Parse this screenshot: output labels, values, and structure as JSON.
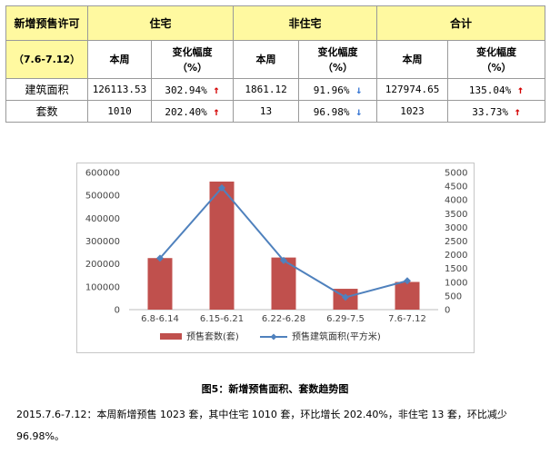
{
  "table": {
    "corner_title": "新增预售许可",
    "period": "（7.6-7.12）",
    "groups": [
      "住宅",
      "非住宅",
      "合计"
    ],
    "col_week": "本周",
    "col_change_line1": "变化幅度",
    "col_change_line2": "（%）",
    "rows": [
      {
        "label": "建筑面积",
        "residential": {
          "value": "126113.53",
          "change": "302.94%",
          "dir": "up"
        },
        "nonresidential": {
          "value": "1861.12",
          "change": "91.96%",
          "dir": "down"
        },
        "total": {
          "value": "127974.65",
          "change": "135.04%",
          "dir": "up"
        }
      },
      {
        "label": "套数",
        "residential": {
          "value": "1010",
          "change": "202.40%",
          "dir": "up"
        },
        "nonresidential": {
          "value": "13",
          "change": "96.98%",
          "dir": "down"
        },
        "total": {
          "value": "1023",
          "change": "33.73%",
          "dir": "up"
        }
      }
    ],
    "arrow_up": "↑",
    "arrow_down": "↓"
  },
  "chart_data": {
    "type": "bar",
    "categories": [
      "6.8-6.14",
      "6.15-6.21",
      "6.22-6.28",
      "6.29-7.5",
      "7.6-7.12"
    ],
    "series": [
      {
        "name": "预售套数(套)",
        "type": "bar",
        "axis": "right",
        "color": "#c0504d",
        "values": [
          1880,
          4670,
          1900,
          760,
          1010
        ]
      },
      {
        "name": "预售建筑面积(平方米)",
        "type": "line",
        "axis": "left",
        "color": "#4f81bd",
        "values": [
          225000,
          533000,
          215000,
          54000,
          126114
        ]
      }
    ],
    "left_axis": {
      "min": 0,
      "max": 600000,
      "step": 100000,
      "ticks": [
        "0",
        "100000",
        "200000",
        "300000",
        "400000",
        "500000",
        "600000"
      ]
    },
    "right_axis": {
      "min": 0,
      "max": 5000,
      "step": 500,
      "ticks": [
        "0",
        "500",
        "1000",
        "1500",
        "2000",
        "2500",
        "3000",
        "3500",
        "4000",
        "4500",
        "5000"
      ]
    },
    "legend_position": "bottom",
    "grid": false
  },
  "caption": "图5：新增预售面积、套数趋势图",
  "paragraph": "2015.7.6-7.12：本周新增预售 1023 套，其中住宅 1010 套，环比增长 202.40%，非住宅 13 套，环比减少 96.98%。"
}
